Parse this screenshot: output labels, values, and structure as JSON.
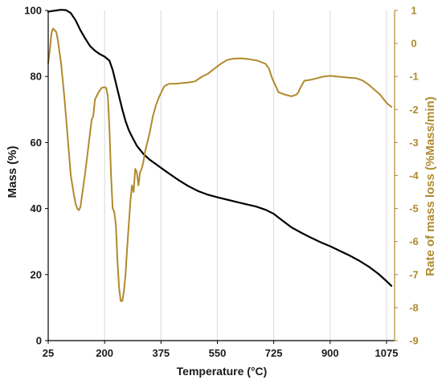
{
  "chart_data": {
    "type": "line",
    "title": "",
    "xlabel": "Temperature (°C)",
    "ylabel_left": "Mass (%)",
    "ylabel_right": "Rate of mass loss (%Mass/min)",
    "xlim": [
      25,
      1100
    ],
    "ylim_left": [
      0,
      100
    ],
    "ylim_right": [
      -9,
      1
    ],
    "x_ticks": [
      25,
      200,
      375,
      550,
      725,
      900,
      1075
    ],
    "y_left_ticks": [
      0,
      20,
      40,
      60,
      80,
      100
    ],
    "y_right_ticks": [
      -9,
      -8,
      -7,
      -6,
      -5,
      -4,
      -3,
      -2,
      -1,
      0,
      1
    ],
    "grid": "vertical",
    "legend": "none",
    "colors": {
      "mass": "#000000",
      "rate": "#b08a2e",
      "grid": "#d9d9d9",
      "axis": "#000000"
    },
    "series": [
      {
        "axis": "left",
        "x": [
          25,
          35,
          50,
          65,
          80,
          95,
          110,
          125,
          140,
          155,
          170,
          185,
          200,
          215,
          225,
          235,
          245,
          255,
          265,
          275,
          285,
          300,
          320,
          340,
          360,
          380,
          400,
          430,
          460,
          490,
          520,
          550,
          580,
          610,
          640,
          670,
          700,
          725,
          750,
          780,
          810,
          840,
          870,
          900,
          930,
          960,
          990,
          1020,
          1050,
          1075,
          1090
        ],
        "values": [
          99.6,
          99.8,
          100,
          100.2,
          100.1,
          99.2,
          97,
          94,
          91.5,
          89.2,
          87.8,
          86.8,
          86,
          84.8,
          82,
          78,
          74,
          70,
          66.5,
          63.8,
          61.8,
          59,
          56.6,
          54.8,
          53.4,
          52,
          50.6,
          48.6,
          46.8,
          45.3,
          44.2,
          43.4,
          42.7,
          42,
          41.3,
          40.6,
          39.6,
          38.4,
          36.5,
          34.3,
          32.7,
          31.2,
          29.8,
          28.6,
          27.2,
          25.8,
          24.2,
          22.4,
          20.2,
          18,
          16.6
        ]
      },
      {
        "axis": "right",
        "x": [
          25,
          30,
          35,
          40,
          50,
          55,
          65,
          75,
          85,
          95,
          105,
          110,
          115,
          120,
          125,
          130,
          140,
          150,
          160,
          165,
          170,
          180,
          190,
          200,
          205,
          210,
          215,
          220,
          225,
          230,
          235,
          240,
          245,
          250,
          255,
          260,
          265,
          270,
          275,
          280,
          285,
          290,
          295,
          300,
          305,
          310,
          315,
          320,
          325,
          330,
          340,
          350,
          360,
          370,
          385,
          400,
          420,
          440,
          460,
          480,
          500,
          520,
          540,
          560,
          580,
          600,
          625,
          650,
          675,
          700,
          710,
          720,
          740,
          760,
          780,
          795,
          800,
          810,
          820,
          840,
          860,
          880,
          900,
          920,
          940,
          960,
          980,
          1000,
          1020,
          1040,
          1055,
          1075,
          1090
        ],
        "values": [
          -0.6,
          -0.2,
          0.3,
          0.45,
          0.35,
          0.1,
          -0.6,
          -1.6,
          -2.8,
          -4,
          -4.6,
          -4.85,
          -5,
          -5.05,
          -4.95,
          -4.6,
          -3.9,
          -3.1,
          -2.3,
          -2.2,
          -1.7,
          -1.5,
          -1.35,
          -1.32,
          -1.35,
          -1.6,
          -2.6,
          -4,
          -5,
          -5.1,
          -5.5,
          -6.6,
          -7.4,
          -7.8,
          -7.8,
          -7.5,
          -7,
          -6.2,
          -5.5,
          -4.8,
          -4.3,
          -4.5,
          -3.8,
          -3.9,
          -4.3,
          -3.9,
          -3.8,
          -3.6,
          -3.3,
          -3.1,
          -2.7,
          -2.2,
          -1.85,
          -1.6,
          -1.3,
          -1.22,
          -1.22,
          -1.2,
          -1.18,
          -1.15,
          -1.02,
          -0.92,
          -0.77,
          -0.62,
          -0.5,
          -0.46,
          -0.45,
          -0.48,
          -0.52,
          -0.62,
          -0.76,
          -1.05,
          -1.48,
          -1.55,
          -1.6,
          -1.55,
          -1.5,
          -1.3,
          -1.13,
          -1.1,
          -1.05,
          -1,
          -0.98,
          -1,
          -1.02,
          -1.04,
          -1.05,
          -1.12,
          -1.25,
          -1.42,
          -1.55,
          -1.8,
          -1.92
        ]
      }
    ]
  }
}
